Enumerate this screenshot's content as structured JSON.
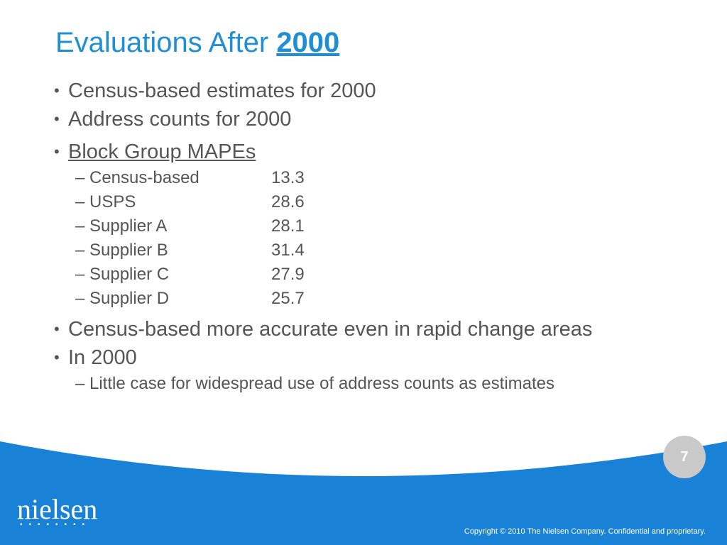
{
  "title": {
    "prefix": "Evaluations After",
    "year": "2000"
  },
  "bullets": {
    "b1": "Census-based estimates for 2000",
    "b2": "Address counts for 2000",
    "b3": "Block Group MAPEs",
    "mapes": [
      {
        "name": "Census-based",
        "value": "13.3"
      },
      {
        "name": "USPS",
        "value": "28.6"
      },
      {
        "name": "Supplier A",
        "value": "28.1"
      },
      {
        "name": "Supplier B",
        "value": "31.4"
      },
      {
        "name": "Supplier C",
        "value": "27.9"
      },
      {
        "name": "Supplier D",
        "value": "25.7"
      }
    ],
    "b4": "Census-based more accurate even in rapid change areas",
    "b5": "In 2000",
    "b5_sub": "Little case for widespread use of address counts as estimates"
  },
  "footer": {
    "page_number": "7",
    "logo": "nielsen",
    "copyright": "Copyright © 2010 The Nielsen Company. Confidential and proprietary."
  },
  "colors": {
    "accent": "#1e8fd5",
    "footer_blue": "#1a82d6",
    "text": "#555555"
  }
}
